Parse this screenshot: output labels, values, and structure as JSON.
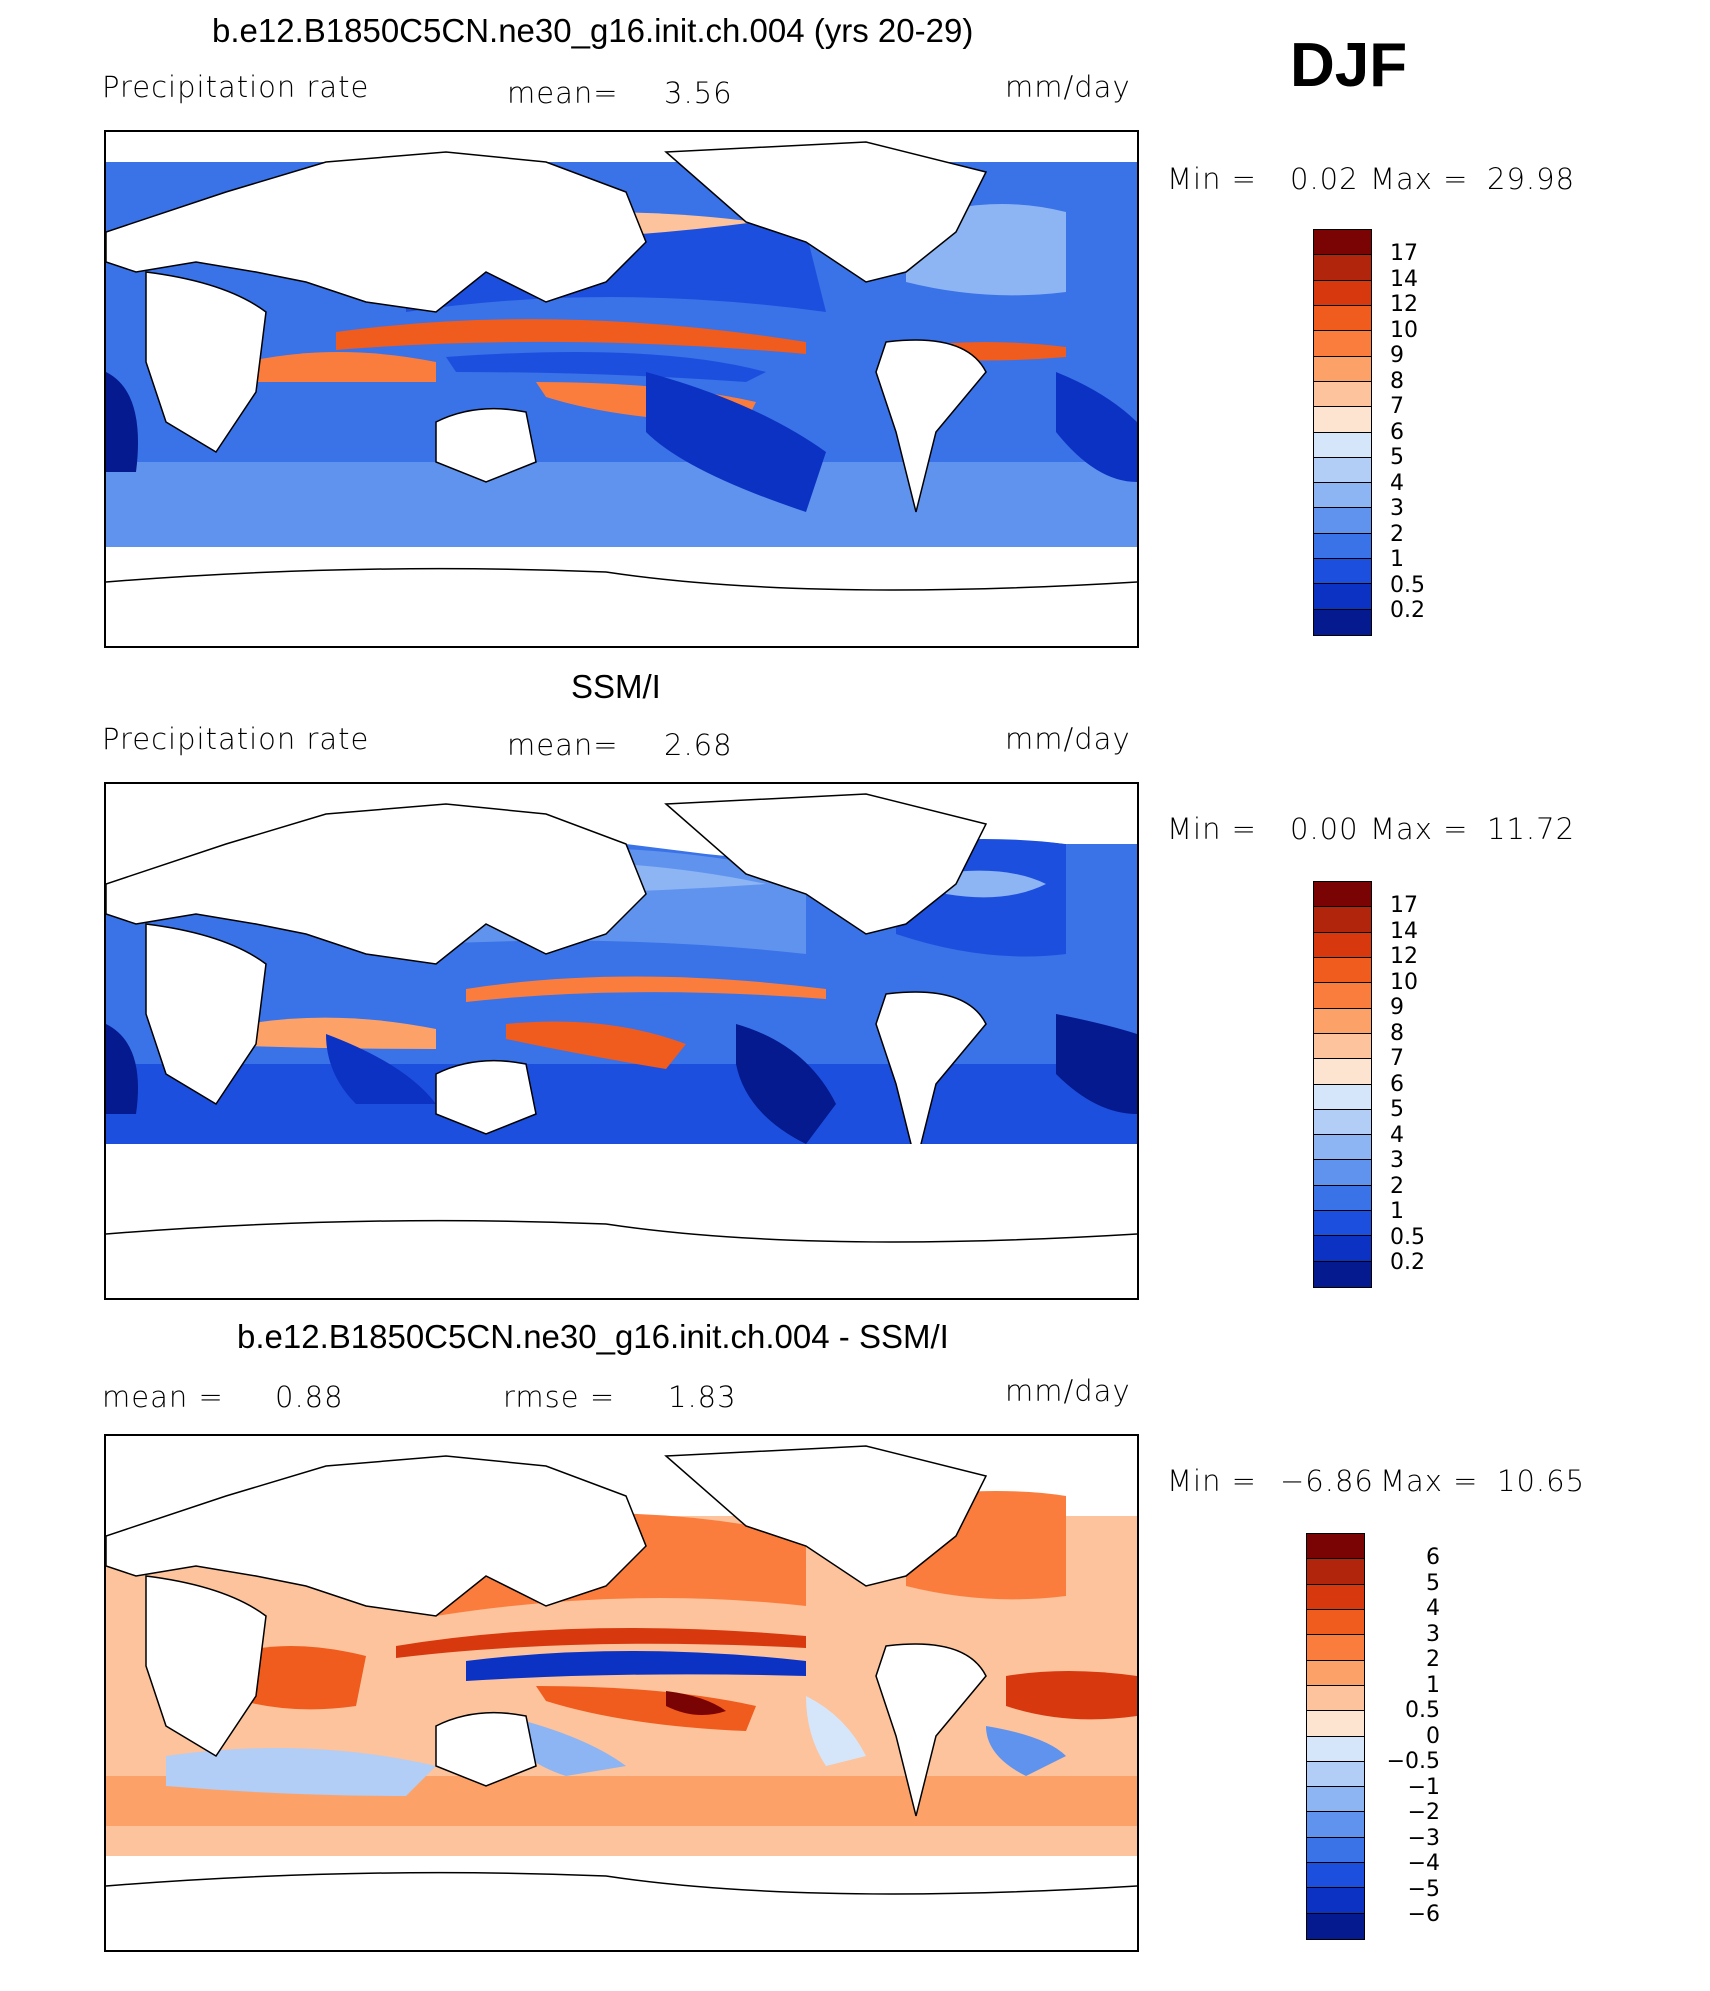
{
  "season": "DJF",
  "units": "mm/day",
  "panels": [
    {
      "title": "b.e12.B1850C5CN.ne30_g16.init.ch.004 (yrs 20-29)",
      "variable": "Precipitation rate",
      "stat1_label": "mean=",
      "stat1_value": "3.56",
      "minmax": {
        "min_label": "Min =",
        "min": "0.02",
        "max_label": "Max =",
        "max": "29.98"
      }
    },
    {
      "title": "SSM/I",
      "variable": "Precipitation rate",
      "stat1_label": "mean=",
      "stat1_value": "2.68",
      "minmax": {
        "min_label": "Min =",
        "min": "0.00",
        "max_label": "Max =",
        "max": "11.72"
      }
    },
    {
      "title": "b.e12.B1850C5CN.ne30_g16.init.ch.004 - SSM/I",
      "stat1_label": "mean =",
      "stat1_value": "0.88",
      "stat2_label": "rmse =",
      "stat2_value": "1.83",
      "minmax": {
        "min_label": "Min =",
        "min": "−6.86",
        "max_label": "Max =",
        "max": "10.65"
      }
    }
  ],
  "colorbars": {
    "precip": {
      "labels": [
        "17",
        "14",
        "12",
        "10",
        "9",
        "8",
        "7",
        "6",
        "5",
        "4",
        "3",
        "2",
        "1",
        "0.5",
        "0.2"
      ],
      "colors": [
        "#7a0403",
        "#b0250b",
        "#d8380e",
        "#f05b1e",
        "#fb7d3e",
        "#fca268",
        "#fcc39c",
        "#fde4d0",
        "#d5e6fa",
        "#b2cdf6",
        "#8db4f3",
        "#5f93ee",
        "#3a72e8",
        "#1d4fdf",
        "#0c32c4",
        "#041a8e"
      ]
    },
    "diff": {
      "labels": [
        "6",
        "5",
        "4",
        "3",
        "2",
        "1",
        "0.5",
        "0",
        "−0.5",
        "−1",
        "−2",
        "−3",
        "−4",
        "−5",
        "−6"
      ],
      "colors": [
        "#7a0403",
        "#b0250b",
        "#d8380e",
        "#f05b1e",
        "#fb7d3e",
        "#fca268",
        "#fcc39c",
        "#fde4d0",
        "#d5e6fa",
        "#b2cdf6",
        "#8db4f3",
        "#5f93ee",
        "#3a72e8",
        "#1d4fdf",
        "#0c32c4",
        "#041a8e"
      ]
    }
  }
}
